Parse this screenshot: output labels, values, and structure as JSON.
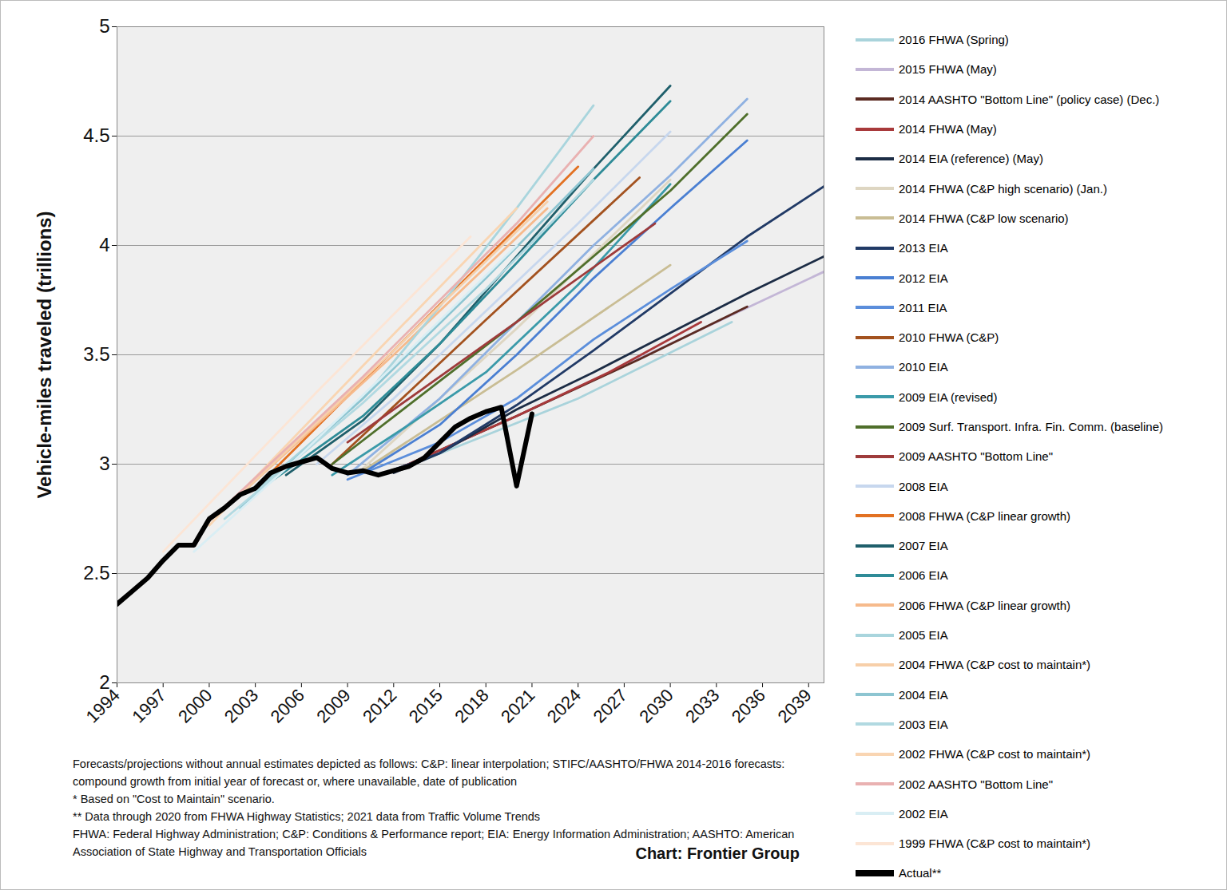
{
  "chart_data": {
    "type": "line",
    "y_label": "Vehicle-miles traveled (trillions)",
    "xlim": [
      1994,
      2040
    ],
    "xticks": [
      1994,
      1997,
      2000,
      2003,
      2006,
      2009,
      2012,
      2015,
      2018,
      2021,
      2024,
      2027,
      2030,
      2033,
      2036,
      2039
    ],
    "ylim": [
      2,
      5
    ],
    "yticks": [
      2,
      2.5,
      3,
      3.5,
      4,
      4.5,
      5
    ],
    "grid": true,
    "legend": "right",
    "notes": [
      "Forecasts/projections without annual estimates depicted as follows: C&P: linear interpolation;  STIFC/AASHTO/FHWA 2014-2016 forecasts: compound growth from initial year of forecast or, where unavailable, date of publication",
      "* Based on \"Cost to Maintain\" scenario.",
      "** Data through 2020 from FHWA Highway Statistics; 2021 data from Traffic Volume Trends",
      "FHWA: Federal Highway Administration; C&P: Conditions & Performance report; EIA: Energy Information Administration; AASHTO: American Association of State Highway and Transportation Officials"
    ],
    "source": "Chart: Frontier Group",
    "series": [
      {
        "name": "2016 FHWA (Spring)",
        "color": "#a9d3db",
        "line_style": "solid",
        "x": [
          2014,
          2024,
          2034
        ],
        "values": [
          3.02,
          3.3,
          3.65
        ]
      },
      {
        "name": "2015 FHWA (May)",
        "color": "#c3b6d6",
        "line_style": "solid",
        "x": [
          2013,
          2020,
          2030,
          2040
        ],
        "values": [
          3.0,
          3.22,
          3.55,
          3.88
        ]
      },
      {
        "name": "2014 AASHTO \"Bottom Line\" (policy case) (Dec.)",
        "color": "#5b2b22",
        "line_style": "solid",
        "x": [
          2012,
          2020,
          2028,
          2035
        ],
        "values": [
          2.97,
          3.22,
          3.48,
          3.72
        ]
      },
      {
        "name": "2014 FHWA (May)",
        "color": "#a8393b",
        "line_style": "solid",
        "x": [
          2012,
          2020,
          2026,
          2032
        ],
        "values": [
          2.97,
          3.22,
          3.42,
          3.65
        ]
      },
      {
        "name": "2014 EIA (reference) (May)",
        "color": "#1c2c45",
        "line_style": "solid",
        "x": [
          2012,
          2015,
          2020,
          2025,
          2030,
          2035,
          2040
        ],
        "values": [
          2.96,
          3.05,
          3.25,
          3.42,
          3.6,
          3.78,
          3.95
        ]
      },
      {
        "name": "2014 FHWA (C&P high scenario) (Jan.)",
        "color": "#ded6c2",
        "line_style": "solid",
        "x": [
          2010,
          2020,
          2030
        ],
        "values": [
          2.98,
          3.62,
          4.3
        ]
      },
      {
        "name": "2014 FHWA (C&P low scenario)",
        "color": "#c9bd94",
        "line_style": "solid",
        "x": [
          2010,
          2020,
          2030
        ],
        "values": [
          2.97,
          3.43,
          3.91
        ]
      },
      {
        "name": "2013 EIA",
        "color": "#213a66",
        "line_style": "solid",
        "x": [
          2011,
          2015,
          2020,
          2025,
          2030,
          2035,
          2040
        ],
        "values": [
          2.95,
          3.05,
          3.27,
          3.52,
          3.78,
          4.04,
          4.27
        ]
      },
      {
        "name": "2012 EIA",
        "color": "#4a7fd2",
        "line_style": "solid",
        "x": [
          2010,
          2015,
          2020,
          2025,
          2030,
          2035
        ],
        "values": [
          2.96,
          3.18,
          3.5,
          3.85,
          4.17,
          4.48
        ]
      },
      {
        "name": "2011 EIA",
        "color": "#5b8edb",
        "line_style": "solid",
        "x": [
          2009,
          2015,
          2020,
          2025,
          2030,
          2035
        ],
        "values": [
          2.93,
          3.1,
          3.3,
          3.57,
          3.8,
          4.02
        ]
      },
      {
        "name": "2010 FHWA (C&P)",
        "color": "#a3521f",
        "line_style": "solid",
        "x": [
          2008,
          2018,
          2028
        ],
        "values": [
          3.0,
          3.66,
          4.31
        ]
      },
      {
        "name": "2010 EIA",
        "color": "#8fb1e1",
        "line_style": "solid",
        "x": [
          2009,
          2015,
          2020,
          2025,
          2030,
          2035
        ],
        "values": [
          2.95,
          3.3,
          3.65,
          4.0,
          4.32,
          4.67
        ]
      },
      {
        "name": "2009 EIA (revised)",
        "color": "#3a9aa9",
        "line_style": "solid",
        "x": [
          2008,
          2013,
          2018,
          2024,
          2030
        ],
        "values": [
          2.95,
          3.18,
          3.42,
          3.82,
          4.28
        ]
      },
      {
        "name": "2009 Surf. Transport. Infra. Fin. Comm. (baseline)",
        "color": "#4f6f2b",
        "line_style": "solid",
        "x": [
          2008,
          2015,
          2020,
          2025,
          2030,
          2035
        ],
        "values": [
          3.0,
          3.38,
          3.65,
          3.95,
          4.25,
          4.6
        ]
      },
      {
        "name": "2009 AASHTO \"Bottom Line\"",
        "color": "#9e3b3b",
        "line_style": "solid",
        "x": [
          2009,
          2019,
          2029
        ],
        "values": [
          3.1,
          3.6,
          4.1
        ]
      },
      {
        "name": "2008 EIA",
        "color": "#c7d7ee",
        "line_style": "solid",
        "x": [
          2007,
          2012,
          2018,
          2024,
          2030
        ],
        "values": [
          3.0,
          3.3,
          3.7,
          4.1,
          4.52
        ]
      },
      {
        "name": "2008 FHWA (C&P linear growth)",
        "color": "#e27122",
        "line_style": "solid",
        "x": [
          2004,
          2014,
          2024
        ],
        "values": [
          2.96,
          3.66,
          4.36
        ]
      },
      {
        "name": "2007 EIA",
        "color": "#1f5f6b",
        "line_style": "solid",
        "x": [
          2005,
          2010,
          2015,
          2020,
          2025,
          2030
        ],
        "values": [
          2.95,
          3.2,
          3.55,
          3.95,
          4.35,
          4.73
        ]
      },
      {
        "name": "2006 EIA",
        "color": "#2e8b97",
        "line_style": "solid",
        "x": [
          2004,
          2010,
          2015,
          2020,
          2025,
          2030
        ],
        "values": [
          2.92,
          3.22,
          3.55,
          3.92,
          4.3,
          4.66
        ]
      },
      {
        "name": "2006 FHWA (C&P linear growth)",
        "color": "#f6ba8c",
        "line_style": "solid",
        "x": [
          2002,
          2012,
          2022
        ],
        "values": [
          2.86,
          3.5,
          4.17
        ]
      },
      {
        "name": "2005 EIA",
        "color": "#a9d5dd",
        "line_style": "solid",
        "x": [
          2003,
          2010,
          2015,
          2020,
          2025
        ],
        "values": [
          2.88,
          3.3,
          3.72,
          4.17,
          4.64
        ]
      },
      {
        "name": "2004 FHWA (C&P cost to maintain*)",
        "color": "#f7cfa9",
        "line_style": "solid",
        "x": [
          2002,
          2012,
          2022
        ],
        "values": [
          2.86,
          3.52,
          4.2
        ]
      },
      {
        "name": "2004 EIA",
        "color": "#8dc5d1",
        "line_style": "solid",
        "x": [
          2002,
          2010,
          2018,
          2025
        ],
        "values": [
          2.8,
          3.3,
          3.85,
          4.35
        ]
      },
      {
        "name": "2003 EIA",
        "color": "#b1d9e1",
        "line_style": "solid",
        "x": [
          2001,
          2010,
          2018,
          2025
        ],
        "values": [
          2.75,
          3.28,
          3.8,
          4.3
        ]
      },
      {
        "name": "2002 FHWA (C&P cost to maintain*)",
        "color": "#f9d5b2",
        "line_style": "solid",
        "x": [
          2000,
          2010,
          2020
        ],
        "values": [
          2.72,
          3.45,
          4.17
        ]
      },
      {
        "name": "2002 AASHTO \"Bottom Line\"",
        "color": "#e9b1b1",
        "line_style": "solid",
        "x": [
          2000,
          2010,
          2020,
          2025
        ],
        "values": [
          2.74,
          3.4,
          4.1,
          4.5
        ]
      },
      {
        "name": "2002 EIA",
        "color": "#d9eef4",
        "line_style": "solid",
        "x": [
          1999,
          2005,
          2012,
          2020
        ],
        "values": [
          2.6,
          2.98,
          3.45,
          4.0
        ]
      },
      {
        "name": "1999 FHWA (C&P cost to maintain*)",
        "color": "#fce5d5",
        "line_style": "solid",
        "x": [
          1997,
          2007,
          2017
        ],
        "values": [
          2.6,
          3.33,
          4.04
        ]
      },
      {
        "name": "Actual**",
        "color": "#000000",
        "line_style": "thick",
        "x": [
          1994,
          1995,
          1996,
          1997,
          1998,
          1999,
          2000,
          2001,
          2002,
          2003,
          2004,
          2005,
          2006,
          2007,
          2008,
          2009,
          2010,
          2011,
          2012,
          2013,
          2014,
          2015,
          2016,
          2017,
          2018,
          2019,
          2020,
          2021
        ],
        "values": [
          2.36,
          2.42,
          2.48,
          2.56,
          2.63,
          2.63,
          2.75,
          2.8,
          2.86,
          2.89,
          2.96,
          2.99,
          3.01,
          3.03,
          2.98,
          2.96,
          2.97,
          2.95,
          2.97,
          2.99,
          3.03,
          3.1,
          3.17,
          3.21,
          3.24,
          3.26,
          2.9,
          3.23
        ]
      }
    ]
  }
}
